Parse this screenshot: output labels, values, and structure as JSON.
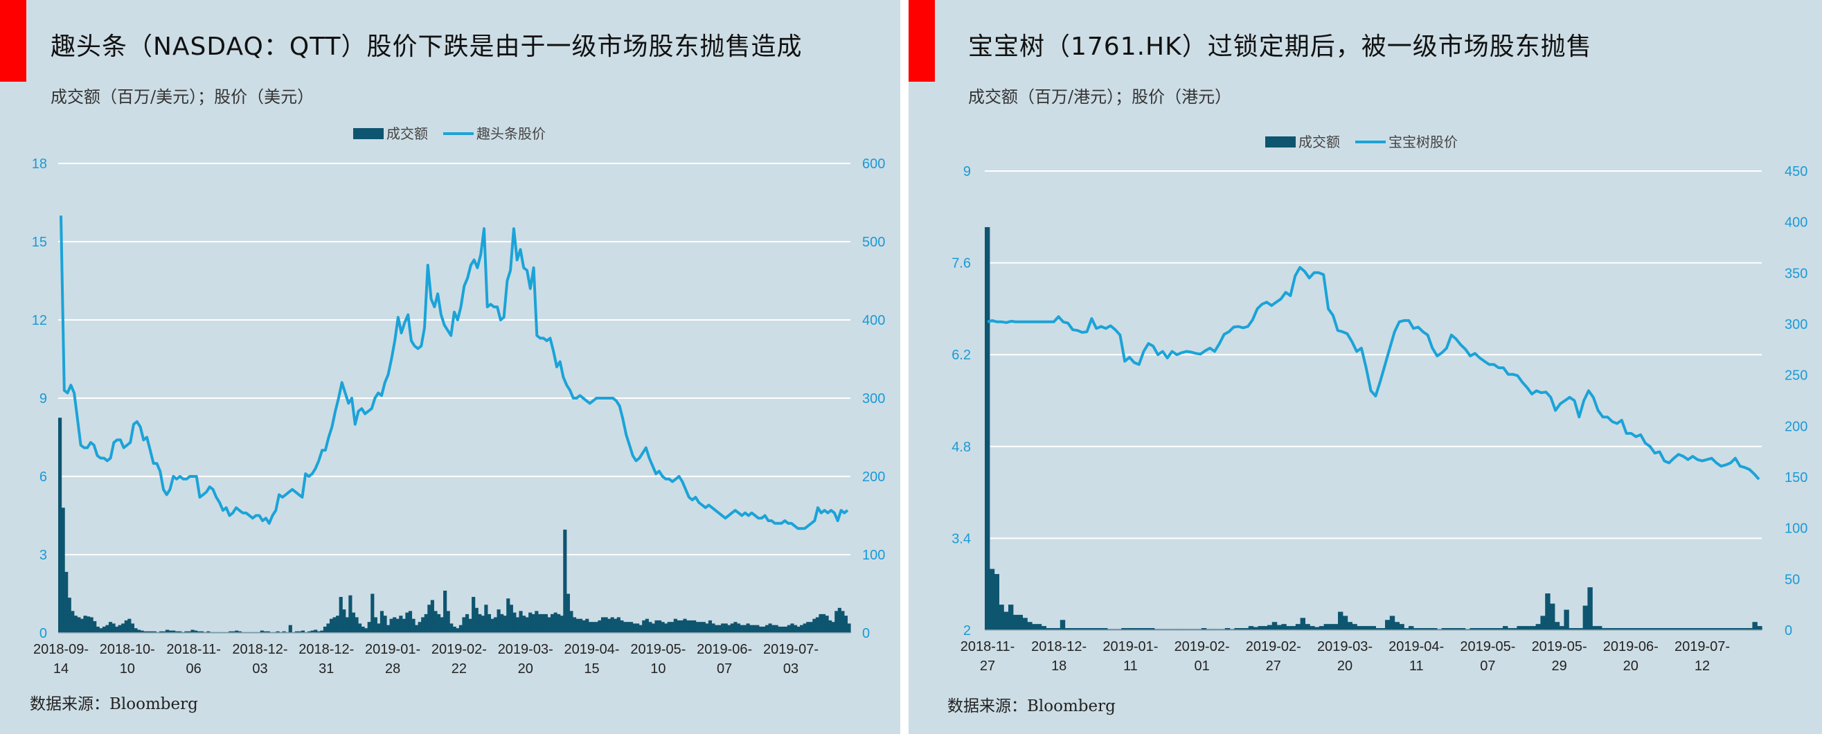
{
  "colors": {
    "background": "#cddde5",
    "accent": "#ff0000",
    "bar": "#0e5570",
    "line": "#1ba3d8",
    "grid": "#ffffff",
    "tick": "#1a9ad6"
  },
  "chart_data": [
    {
      "type": "bar+line",
      "title": "趣头条（NASDAQ：QTT）股价下跌是由于一级市场股东抛售造成",
      "subtitle": "成交额（百万/美元）；股价（美元）",
      "source": "数据来源：Bloomberg",
      "legend": [
        "成交额",
        "趣头条股价"
      ],
      "legend_position": "top-center",
      "grid": true,
      "left_axis": {
        "ticks": [
          "0",
          "3",
          "6",
          "9",
          "12",
          "15",
          "18"
        ],
        "ylim": [
          0,
          18
        ]
      },
      "right_axis": {
        "ticks": [
          "0",
          "100",
          "200",
          "300",
          "400",
          "500",
          "600"
        ],
        "ylim": [
          0,
          600
        ]
      },
      "x_labels": [
        [
          "2018-09-",
          "14"
        ],
        [
          "2018-10-",
          "10"
        ],
        [
          "2018-11-",
          "06"
        ],
        [
          "2018-12-",
          "03"
        ],
        [
          "2018-12-",
          "31"
        ],
        [
          "2019-01-",
          "28"
        ],
        [
          "2019-02-",
          "22"
        ],
        [
          "2019-03-",
          "20"
        ],
        [
          "2019-04-",
          "15"
        ],
        [
          "2019-05-",
          "10"
        ],
        [
          "2019-06-",
          "07"
        ],
        [
          "2019-07-",
          "03"
        ]
      ],
      "series": [
        {
          "name": "趣头条股价",
          "axis": "left",
          "kind": "line",
          "values": [
            16.0,
            9.3,
            9.2,
            9.5,
            9.2,
            8.2,
            7.2,
            7.1,
            7.1,
            7.3,
            7.2,
            6.8,
            6.7,
            6.7,
            6.6,
            6.7,
            7.3,
            7.4,
            7.4,
            7.1,
            7.2,
            7.3,
            8.0,
            8.1,
            7.9,
            7.4,
            7.5,
            7.0,
            6.5,
            6.5,
            6.2,
            5.5,
            5.3,
            5.5,
            6.0,
            5.9,
            6.0,
            5.9,
            5.9,
            6.0,
            6.0,
            6.0,
            5.2,
            5.3,
            5.4,
            5.6,
            5.5,
            5.2,
            5.0,
            4.7,
            4.8,
            4.5,
            4.6,
            4.8,
            4.7,
            4.6,
            4.6,
            4.5,
            4.4,
            4.5,
            4.5,
            4.3,
            4.4,
            4.2,
            4.5,
            4.7,
            5.3,
            5.2,
            5.3,
            5.4,
            5.5,
            5.4,
            5.3,
            5.2,
            6.1,
            6.0,
            6.1,
            6.3,
            6.6,
            7.0,
            7.0,
            7.5,
            7.9,
            8.5,
            9.0,
            9.6,
            9.2,
            8.8,
            9.0,
            8.0,
            8.5,
            8.6,
            8.4,
            8.5,
            8.6,
            9.0,
            9.2,
            9.1,
            9.6,
            9.9,
            10.5,
            11.2,
            12.1,
            11.5,
            11.9,
            12.2,
            11.2,
            11.0,
            10.9,
            11.0,
            11.7,
            14.1,
            12.8,
            12.5,
            13.0,
            12.2,
            11.8,
            11.6,
            11.4,
            12.3,
            12.0,
            12.5,
            13.3,
            13.6,
            14.1,
            14.3,
            14.0,
            14.5,
            15.5,
            12.5,
            12.6,
            12.5,
            12.5,
            12.0,
            12.1,
            13.5,
            13.9,
            15.5,
            14.3,
            14.7,
            14.0,
            13.9,
            13.2,
            14.0,
            11.4,
            11.3,
            11.3,
            11.2,
            11.3,
            10.8,
            10.2,
            10.4,
            9.8,
            9.5,
            9.3,
            9.0,
            9.0,
            9.1,
            9.0,
            8.9,
            8.8,
            8.9,
            9.0,
            9.0,
            9.0,
            9.0,
            9.0,
            9.0,
            8.9,
            8.7,
            8.2,
            7.6,
            7.2,
            6.8,
            6.6,
            6.7,
            6.9,
            7.1,
            6.7,
            6.4,
            6.1,
            6.2,
            6.0,
            5.9,
            5.9,
            5.8,
            5.9,
            6.0,
            5.8,
            5.5,
            5.2,
            5.1,
            5.2,
            5.0,
            4.9,
            4.8,
            4.9,
            4.8,
            4.7,
            4.6,
            4.5,
            4.4,
            4.5,
            4.6,
            4.7,
            4.6,
            4.5,
            4.6,
            4.5,
            4.6,
            4.5,
            4.4,
            4.4,
            4.5,
            4.3,
            4.3,
            4.2,
            4.2,
            4.2,
            4.3,
            4.2,
            4.2,
            4.1,
            4.0,
            4.0,
            4.0,
            4.1,
            4.2,
            4.3,
            4.8,
            4.6,
            4.7,
            4.6,
            4.7,
            4.6,
            4.3,
            4.7,
            4.6,
            4.7
          ]
        },
        {
          "name": "成交额",
          "axis": "right",
          "kind": "bar",
          "values": [
            275,
            160,
            78,
            45,
            28,
            22,
            20,
            18,
            22,
            21,
            20,
            15,
            8,
            6,
            8,
            10,
            14,
            12,
            8,
            10,
            12,
            16,
            18,
            12,
            6,
            4,
            3,
            2,
            2,
            2,
            2,
            1,
            2,
            2,
            4,
            3,
            3,
            2,
            2,
            1,
            2,
            2,
            4,
            3,
            2,
            2,
            1,
            2,
            1,
            1,
            1,
            1,
            1,
            1,
            2,
            2,
            3,
            2,
            1,
            1,
            1,
            1,
            1,
            1,
            3,
            2,
            2,
            1,
            1,
            2,
            1,
            2,
            1,
            10,
            1,
            2,
            2,
            3,
            1,
            2,
            3,
            4,
            2,
            3,
            8,
            12,
            18,
            20,
            22,
            46,
            30,
            20,
            48,
            26,
            20,
            12,
            8,
            6,
            14,
            50,
            20,
            12,
            28,
            22,
            10,
            18,
            20,
            18,
            22,
            18,
            26,
            28,
            18,
            10,
            14,
            20,
            24,
            36,
            42,
            28,
            24,
            20,
            54,
            28,
            12,
            8,
            6,
            10,
            20,
            24,
            18,
            46,
            32,
            24,
            22,
            36,
            24,
            18,
            20,
            30,
            24,
            22,
            44,
            36,
            26,
            20,
            28,
            22,
            20,
            26,
            24,
            28,
            24,
            24,
            24,
            20,
            24,
            26,
            24,
            22,
            132,
            50,
            28,
            20,
            18,
            18,
            16,
            18,
            14,
            14,
            14,
            16,
            20,
            20,
            18,
            20,
            18,
            20,
            16,
            14,
            14,
            14,
            12,
            12,
            10,
            16,
            18,
            14,
            12,
            16,
            16,
            14,
            12,
            14,
            14,
            18,
            16,
            16,
            18,
            16,
            16,
            16,
            14,
            14,
            14,
            12,
            16,
            12,
            10,
            10,
            12,
            12,
            10,
            12,
            14,
            12,
            10,
            10,
            12,
            10,
            10,
            10,
            8,
            8,
            10,
            12,
            10,
            10,
            8,
            8,
            8,
            10,
            12,
            10,
            8,
            10,
            12,
            14,
            14,
            18,
            20,
            24,
            24,
            22,
            16,
            14,
            28,
            32,
            28,
            22,
            12
          ]
        }
      ]
    },
    {
      "type": "bar+line",
      "title": "宝宝树（1761.HK）过锁定期后，被一级市场股东抛售",
      "subtitle": "成交额（百万/港元）；股价（港元）",
      "source": "数据来源：Bloomberg",
      "legend": [
        "成交额",
        "宝宝树股价"
      ],
      "legend_position": "top-center",
      "grid": true,
      "left_axis": {
        "ticks": [
          "2",
          "3.4",
          "4.8",
          "6.2",
          "7.6",
          "9"
        ],
        "ylim": [
          2,
          9
        ]
      },
      "right_axis": {
        "ticks": [
          "0",
          "50",
          "100",
          "150",
          "200",
          "250",
          "300",
          "350",
          "400",
          "450"
        ],
        "ylim": [
          0,
          450
        ]
      },
      "x_labels": [
        [
          "2018-11-",
          "27"
        ],
        [
          "2018-12-",
          "18"
        ],
        [
          "2019-01-",
          "11"
        ],
        [
          "2019-02-",
          "01"
        ],
        [
          "2019-02-",
          "27"
        ],
        [
          "2019-03-",
          "20"
        ],
        [
          "2019-04-",
          "11"
        ],
        [
          "2019-05-",
          "07"
        ],
        [
          "2019-05-",
          "29"
        ],
        [
          "2019-06-",
          "20"
        ],
        [
          "2019-07-",
          "12"
        ]
      ],
      "series": [
        {
          "name": "宝宝树股价",
          "axis": "left",
          "kind": "line",
          "values": [
            6.7,
            6.72,
            6.7,
            6.7,
            6.69,
            6.71,
            6.7,
            6.7,
            6.7,
            6.7,
            6.7,
            6.7,
            6.7,
            6.7,
            6.7,
            6.78,
            6.7,
            6.68,
            6.58,
            6.57,
            6.54,
            6.55,
            6.75,
            6.6,
            6.63,
            6.6,
            6.64,
            6.58,
            6.5,
            6.1,
            6.16,
            6.08,
            6.05,
            6.25,
            6.37,
            6.33,
            6.2,
            6.25,
            6.15,
            6.25,
            6.2,
            6.23,
            6.25,
            6.24,
            6.22,
            6.21,
            6.26,
            6.3,
            6.25,
            6.37,
            6.51,
            6.55,
            6.62,
            6.63,
            6.61,
            6.63,
            6.73,
            6.9,
            6.97,
            7.0,
            6.95,
            7.0,
            7.05,
            7.15,
            7.1,
            7.4,
            7.53,
            7.47,
            7.37,
            7.45,
            7.45,
            7.42,
            6.9,
            6.8,
            6.57,
            6.55,
            6.52,
            6.4,
            6.25,
            6.3,
            6.0,
            5.65,
            5.57,
            5.8,
            6.05,
            6.3,
            6.55,
            6.7,
            6.72,
            6.72,
            6.6,
            6.62,
            6.55,
            6.5,
            6.3,
            6.18,
            6.23,
            6.3,
            6.5,
            6.44,
            6.35,
            6.28,
            6.18,
            6.22,
            6.15,
            6.1,
            6.05,
            6.05,
            6.0,
            6.0,
            5.9,
            5.9,
            5.88,
            5.78,
            5.7,
            5.6,
            5.65,
            5.62,
            5.63,
            5.55,
            5.35,
            5.45,
            5.5,
            5.55,
            5.5,
            5.25,
            5.5,
            5.65,
            5.55,
            5.35,
            5.25,
            5.25,
            5.18,
            5.15,
            5.2,
            5.0,
            5.0,
            4.95,
            4.98,
            4.85,
            4.8,
            4.7,
            4.72,
            4.58,
            4.55,
            4.62,
            4.68,
            4.65,
            4.6,
            4.65,
            4.6,
            4.58,
            4.6,
            4.62,
            4.55,
            4.5,
            4.52,
            4.55,
            4.62,
            4.5,
            4.48,
            4.45,
            4.38,
            4.3
          ]
        },
        {
          "name": "成交额",
          "axis": "right",
          "kind": "bar",
          "values": [
            395,
            60,
            55,
            25,
            18,
            25,
            15,
            15,
            12,
            8,
            6,
            6,
            4,
            2,
            2,
            2,
            10,
            2,
            2,
            2,
            2,
            2,
            2,
            2,
            2,
            2,
            1,
            1,
            1,
            2,
            2,
            2,
            2,
            2,
            2,
            2,
            1,
            1,
            1,
            1,
            1,
            1,
            1,
            1,
            1,
            1,
            2,
            1,
            1,
            1,
            1,
            2,
            1,
            2,
            2,
            2,
            4,
            3,
            4,
            4,
            5,
            8,
            5,
            6,
            4,
            4,
            6,
            12,
            6,
            4,
            3,
            4,
            6,
            6,
            6,
            18,
            14,
            8,
            6,
            4,
            4,
            4,
            4,
            2,
            2,
            10,
            14,
            8,
            6,
            2,
            4,
            2,
            2,
            2,
            2,
            2,
            1,
            2,
            2,
            2,
            2,
            2,
            1,
            2,
            2,
            2,
            2,
            2,
            2,
            2,
            4,
            2,
            2,
            4,
            4,
            4,
            4,
            6,
            14,
            36,
            26,
            8,
            4,
            20,
            2,
            2,
            2,
            24,
            42,
            4,
            4,
            2,
            2,
            2,
            2,
            2,
            2,
            2,
            2,
            2,
            2,
            2,
            2,
            2,
            2,
            2,
            2,
            2,
            2,
            2,
            2,
            2,
            2,
            2,
            2,
            2,
            2,
            2,
            2,
            2,
            2,
            2,
            2,
            8,
            4
          ]
        }
      ]
    }
  ]
}
